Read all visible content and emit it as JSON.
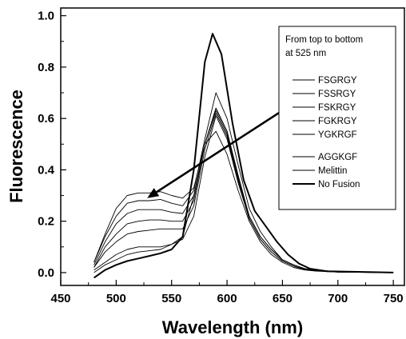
{
  "chart_data": {
    "type": "line",
    "xlabel": "Wavelength (nm)",
    "ylabel": "Fluorescence",
    "xlim": [
      450,
      760
    ],
    "ylim": [
      -0.05,
      1.03
    ],
    "x_ticks": [
      "450",
      "500",
      "550",
      "600",
      "650",
      "700",
      "750"
    ],
    "y_ticks": [
      "0.0",
      "0.2",
      "0.4",
      "0.6",
      "0.8",
      "1.0"
    ],
    "legend": {
      "title_lines": [
        "From top to bottom",
        "at 525 nm"
      ],
      "position": "top-right"
    },
    "annotation": {
      "type": "arrow",
      "from": [
        682,
        0.72
      ],
      "to": [
        528,
        0.29
      ]
    },
    "series": [
      {
        "name": "FSGRGY",
        "group": 1,
        "points": [
          [
            480,
            0.04
          ],
          [
            490,
            0.15
          ],
          [
            500,
            0.25
          ],
          [
            510,
            0.3
          ],
          [
            520,
            0.31
          ],
          [
            530,
            0.31
          ],
          [
            540,
            0.315
          ],
          [
            550,
            0.3
          ],
          [
            560,
            0.29
          ],
          [
            570,
            0.33
          ],
          [
            580,
            0.5
          ],
          [
            590,
            0.64
          ],
          [
            600,
            0.55
          ],
          [
            610,
            0.38
          ],
          [
            620,
            0.22
          ],
          [
            630,
            0.14
          ],
          [
            640,
            0.09
          ],
          [
            650,
            0.05
          ],
          [
            660,
            0.03
          ],
          [
            670,
            0.015
          ],
          [
            680,
            0.01
          ],
          [
            700,
            0.003
          ],
          [
            750,
            0.0
          ]
        ]
      },
      {
        "name": "FSSRGY",
        "group": 1,
        "points": [
          [
            480,
            0.04
          ],
          [
            490,
            0.14
          ],
          [
            500,
            0.22
          ],
          [
            510,
            0.27
          ],
          [
            520,
            0.28
          ],
          [
            530,
            0.28
          ],
          [
            540,
            0.285
          ],
          [
            550,
            0.27
          ],
          [
            560,
            0.26
          ],
          [
            570,
            0.32
          ],
          [
            580,
            0.52
          ],
          [
            590,
            0.7
          ],
          [
            600,
            0.6
          ],
          [
            610,
            0.42
          ],
          [
            620,
            0.25
          ],
          [
            630,
            0.16
          ],
          [
            640,
            0.1
          ],
          [
            650,
            0.05
          ],
          [
            660,
            0.03
          ],
          [
            670,
            0.015
          ],
          [
            680,
            0.01
          ],
          [
            700,
            0.003
          ],
          [
            750,
            0.0
          ]
        ]
      },
      {
        "name": "FSKRGY",
        "group": 1,
        "points": [
          [
            480,
            0.03
          ],
          [
            490,
            0.12
          ],
          [
            500,
            0.19
          ],
          [
            510,
            0.23
          ],
          [
            520,
            0.245
          ],
          [
            530,
            0.245
          ],
          [
            540,
            0.245
          ],
          [
            550,
            0.235
          ],
          [
            560,
            0.23
          ],
          [
            570,
            0.3
          ],
          [
            580,
            0.5
          ],
          [
            590,
            0.63
          ],
          [
            600,
            0.54
          ],
          [
            610,
            0.37
          ],
          [
            620,
            0.22
          ],
          [
            630,
            0.14
          ],
          [
            640,
            0.09
          ],
          [
            650,
            0.05
          ],
          [
            660,
            0.03
          ],
          [
            670,
            0.015
          ],
          [
            680,
            0.01
          ],
          [
            700,
            0.003
          ],
          [
            750,
            0.0
          ]
        ]
      },
      {
        "name": "FGKRGY",
        "group": 1,
        "points": [
          [
            480,
            0.02
          ],
          [
            490,
            0.1
          ],
          [
            500,
            0.15
          ],
          [
            510,
            0.19
          ],
          [
            520,
            0.2
          ],
          [
            530,
            0.205
          ],
          [
            540,
            0.205
          ],
          [
            550,
            0.2
          ],
          [
            560,
            0.2
          ],
          [
            570,
            0.28
          ],
          [
            580,
            0.5
          ],
          [
            590,
            0.64
          ],
          [
            600,
            0.55
          ],
          [
            610,
            0.37
          ],
          [
            620,
            0.22
          ],
          [
            630,
            0.14
          ],
          [
            640,
            0.09
          ],
          [
            650,
            0.05
          ],
          [
            660,
            0.03
          ],
          [
            670,
            0.015
          ],
          [
            680,
            0.01
          ],
          [
            700,
            0.003
          ],
          [
            750,
            0.0
          ]
        ]
      },
      {
        "name": "YGKRGF",
        "group": 1,
        "points": [
          [
            480,
            0.02
          ],
          [
            490,
            0.08
          ],
          [
            500,
            0.12
          ],
          [
            510,
            0.15
          ],
          [
            520,
            0.16
          ],
          [
            530,
            0.165
          ],
          [
            540,
            0.17
          ],
          [
            550,
            0.17
          ],
          [
            560,
            0.17
          ],
          [
            570,
            0.26
          ],
          [
            580,
            0.48
          ],
          [
            590,
            0.62
          ],
          [
            600,
            0.53
          ],
          [
            610,
            0.36
          ],
          [
            620,
            0.21
          ],
          [
            630,
            0.13
          ],
          [
            640,
            0.08
          ],
          [
            650,
            0.045
          ],
          [
            660,
            0.025
          ],
          [
            670,
            0.012
          ],
          [
            680,
            0.008
          ],
          [
            700,
            0.002
          ],
          [
            750,
            0.0
          ]
        ]
      },
      {
        "name": "AGGKGF",
        "group": 2,
        "points": [
          [
            480,
            0.01
          ],
          [
            490,
            0.04
          ],
          [
            500,
            0.07
          ],
          [
            510,
            0.09
          ],
          [
            520,
            0.1
          ],
          [
            530,
            0.1
          ],
          [
            540,
            0.1
          ],
          [
            550,
            0.11
          ],
          [
            560,
            0.13
          ],
          [
            570,
            0.22
          ],
          [
            580,
            0.45
          ],
          [
            590,
            0.61
          ],
          [
            600,
            0.52
          ],
          [
            610,
            0.35
          ],
          [
            620,
            0.21
          ],
          [
            630,
            0.13
          ],
          [
            640,
            0.08
          ],
          [
            650,
            0.045
          ],
          [
            660,
            0.025
          ],
          [
            670,
            0.012
          ],
          [
            680,
            0.008
          ],
          [
            700,
            0.002
          ],
          [
            750,
            0.0
          ]
        ]
      },
      {
        "name": "Melittin",
        "group": 2,
        "points": [
          [
            480,
            0.0
          ],
          [
            490,
            0.03
          ],
          [
            500,
            0.05
          ],
          [
            510,
            0.07
          ],
          [
            520,
            0.08
          ],
          [
            530,
            0.085
          ],
          [
            540,
            0.09
          ],
          [
            550,
            0.11
          ],
          [
            560,
            0.14
          ],
          [
            570,
            0.3
          ],
          [
            580,
            0.5
          ],
          [
            590,
            0.55
          ],
          [
            600,
            0.46
          ],
          [
            610,
            0.32
          ],
          [
            620,
            0.2
          ],
          [
            630,
            0.12
          ],
          [
            640,
            0.07
          ],
          [
            650,
            0.04
          ],
          [
            660,
            0.02
          ],
          [
            670,
            0.01
          ],
          [
            680,
            0.006
          ],
          [
            700,
            0.002
          ],
          [
            750,
            0.0
          ]
        ]
      },
      {
        "name": "No Fusion",
        "group": 2,
        "bold": true,
        "points": [
          [
            480,
            -0.02
          ],
          [
            490,
            0.01
          ],
          [
            500,
            0.03
          ],
          [
            510,
            0.045
          ],
          [
            520,
            0.055
          ],
          [
            530,
            0.065
          ],
          [
            540,
            0.075
          ],
          [
            550,
            0.09
          ],
          [
            560,
            0.14
          ],
          [
            570,
            0.4
          ],
          [
            580,
            0.82
          ],
          [
            587,
            0.93
          ],
          [
            595,
            0.85
          ],
          [
            605,
            0.58
          ],
          [
            615,
            0.36
          ],
          [
            625,
            0.24
          ],
          [
            635,
            0.18
          ],
          [
            645,
            0.12
          ],
          [
            655,
            0.07
          ],
          [
            665,
            0.035
          ],
          [
            675,
            0.015
          ],
          [
            690,
            0.005
          ],
          [
            750,
            0.0
          ]
        ]
      }
    ]
  }
}
